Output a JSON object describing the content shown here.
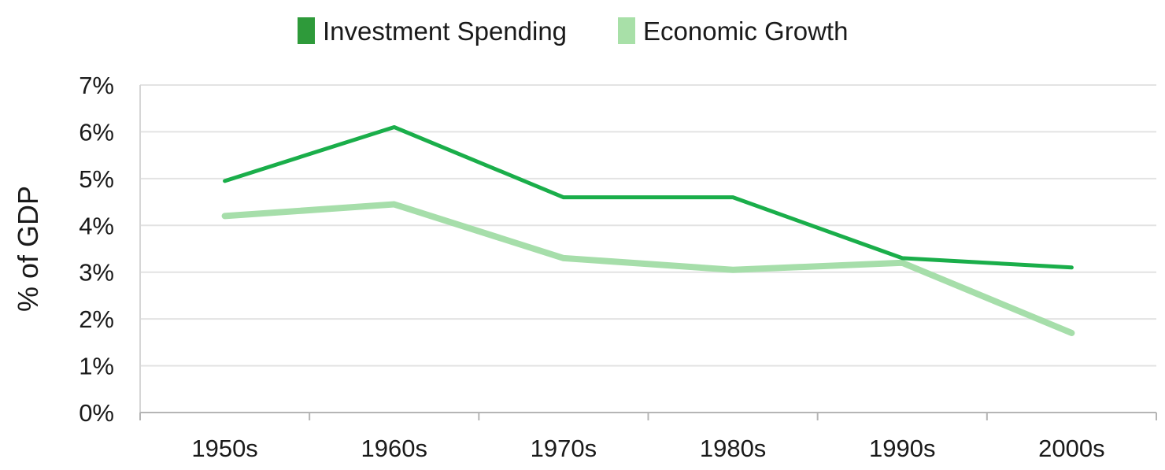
{
  "chart_data": {
    "type": "line",
    "title": "",
    "xlabel": "",
    "ylabel": "% of GDP",
    "categories": [
      "1950s",
      "1960s",
      "1970s",
      "1980s",
      "1990s",
      "2000s"
    ],
    "ylim": [
      0,
      7
    ],
    "yticks": [
      "0%",
      "1%",
      "2%",
      "3%",
      "4%",
      "5%",
      "6%",
      "7%"
    ],
    "grid": true,
    "legend_placement": "top",
    "series": [
      {
        "name": "Investment Spending",
        "values": [
          4.95,
          6.1,
          4.6,
          4.6,
          3.3,
          3.1
        ],
        "color": "#1aae4a",
        "legend_color": "#2e9a3a"
      },
      {
        "name": "Economic Growth",
        "values": [
          4.2,
          4.45,
          3.3,
          3.05,
          3.2,
          1.7
        ],
        "color": "#a6deaa",
        "legend_color": "#a8e0a8"
      }
    ]
  }
}
